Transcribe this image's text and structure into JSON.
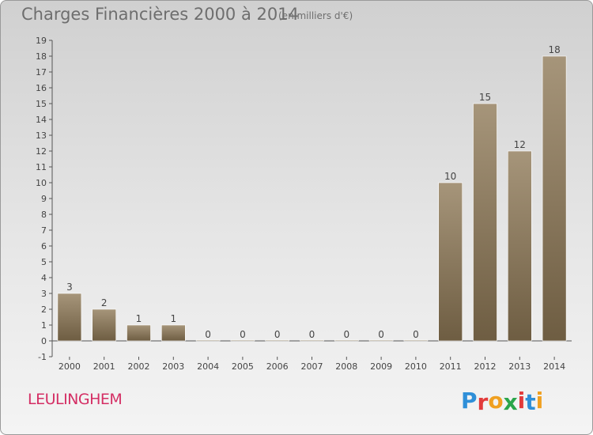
{
  "title": "Charges Financières 2000 à 2014",
  "subtitle": "(en milliers d'€)",
  "commune": "LEULINGHEM",
  "logo": {
    "text": "Proxiti",
    "letters": [
      {
        "ch": "P",
        "color": "#2f8fd8"
      },
      {
        "ch": "r",
        "color": "#e23b3b"
      },
      {
        "ch": "o",
        "color": "#f0a020"
      },
      {
        "ch": "x",
        "color": "#2aa54a"
      },
      {
        "ch": "i",
        "color": "#e23b3b"
      },
      {
        "ch": "t",
        "color": "#2f8fd8"
      },
      {
        "ch": "i",
        "color": "#f0a020"
      }
    ]
  },
  "chart_data": {
    "type": "bar",
    "title": "Charges Financières 2000 à 2014",
    "subtitle": "(en milliers d'€)",
    "xlabel": "",
    "ylabel": "",
    "categories": [
      "2000",
      "2001",
      "2002",
      "2003",
      "2004",
      "2005",
      "2006",
      "2007",
      "2008",
      "2009",
      "2010",
      "2011",
      "2012",
      "2013",
      "2014"
    ],
    "values": [
      3,
      2,
      1,
      1,
      0,
      0,
      0,
      0,
      0,
      0,
      0,
      10,
      15,
      12,
      18
    ],
    "ylim": [
      -1,
      19
    ],
    "yticks": [
      -1,
      0,
      1,
      2,
      3,
      4,
      5,
      6,
      7,
      8,
      9,
      10,
      11,
      12,
      13,
      14,
      15,
      16,
      17,
      18,
      19
    ],
    "grid": false,
    "colors": {
      "bar_top": "#a6957a",
      "bar_bottom": "#6e5d42",
      "axis": "#555555",
      "text": "#444444"
    }
  }
}
